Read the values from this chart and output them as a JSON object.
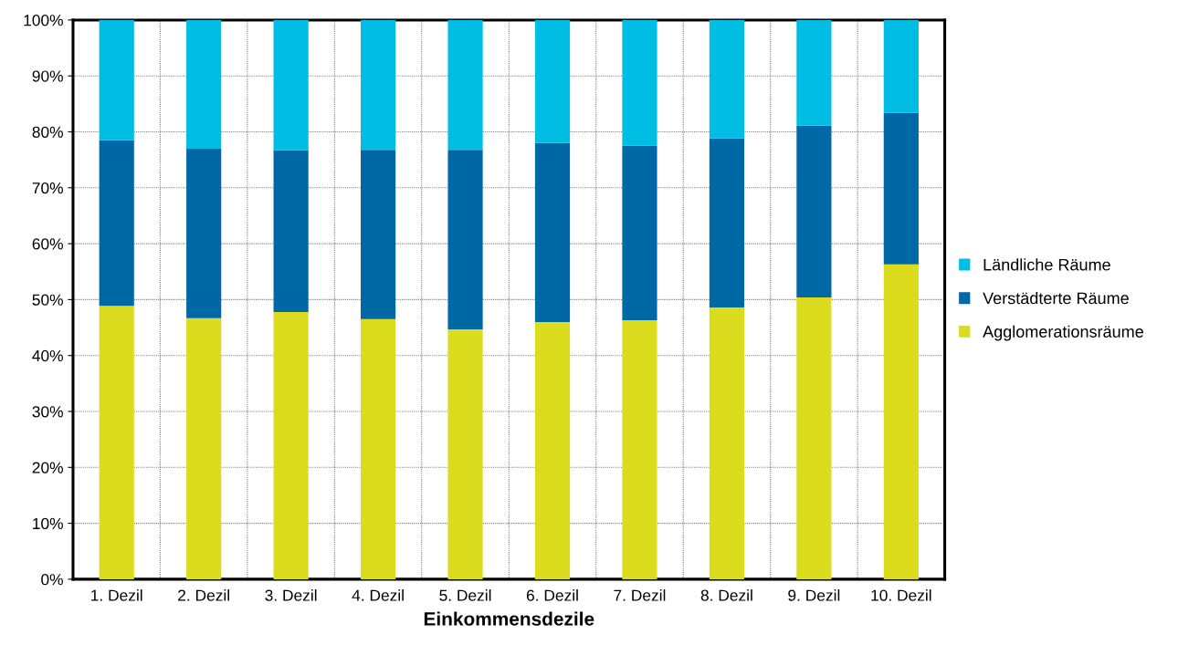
{
  "chart_data": {
    "type": "bar",
    "stacked": true,
    "xlabel": "Einkommensdezile",
    "categories": [
      "1. Dezil",
      "2. Dezil",
      "3. Dezil",
      "4. Dezil",
      "5. Dezil",
      "6. Dezil",
      "7. Dezil",
      "8. Dezil",
      "9. Dezil",
      "10. Dezil"
    ],
    "series": [
      {
        "name": "Agglomerationsräume",
        "color": "#dcdc1e",
        "values": [
          48.9,
          46.7,
          47.8,
          46.5,
          44.7,
          46.0,
          46.3,
          48.6,
          50.4,
          56.3
        ]
      },
      {
        "name": "Verstädterte Räume",
        "color": "#0068a5",
        "values": [
          29.6,
          30.3,
          28.9,
          30.3,
          32.1,
          32.0,
          31.2,
          30.2,
          30.7,
          27.1
        ]
      },
      {
        "name": "Ländliche Räume",
        "color": "#00bde3",
        "values": [
          21.5,
          23.0,
          23.3,
          23.2,
          23.2,
          22.0,
          22.5,
          21.2,
          18.9,
          16.6
        ]
      }
    ],
    "ylim": [
      0,
      100
    ],
    "yticks": [
      {
        "value": 0,
        "label": "0%"
      },
      {
        "value": 10,
        "label": "10%"
      },
      {
        "value": 20,
        "label": "20%"
      },
      {
        "value": 30,
        "label": "30%"
      },
      {
        "value": 40,
        "label": "40%"
      },
      {
        "value": 50,
        "label": "50%"
      },
      {
        "value": 60,
        "label": "60%"
      },
      {
        "value": 70,
        "label": "70%"
      },
      {
        "value": 80,
        "label": "80%"
      },
      {
        "value": 90,
        "label": "90%"
      },
      {
        "value": 100,
        "label": "100%"
      }
    ],
    "grid": true,
    "legend": "right"
  }
}
